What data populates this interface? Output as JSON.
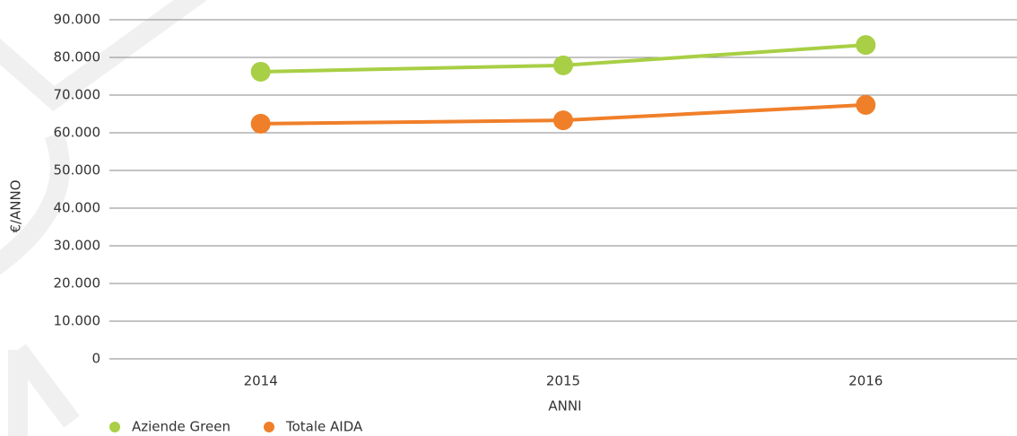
{
  "chart_data": {
    "type": "line",
    "categories": [
      "2014",
      "2015",
      "2016"
    ],
    "series": [
      {
        "name": "Aziende Green",
        "color": "#a8cf45",
        "values": [
          76200,
          77900,
          83300
        ]
      },
      {
        "name": "Totale AIDA",
        "color": "#f07f2a",
        "values": [
          62400,
          63300,
          67400
        ]
      }
    ],
    "ylim": [
      0,
      90000
    ],
    "yticks": [
      0,
      {
        "value": 10000,
        "label": "10.000"
      },
      {
        "value": 20000,
        "label": "20.000"
      },
      {
        "value": 30000,
        "label": "30.000"
      },
      {
        "value": 40000,
        "label": "40.000"
      },
      {
        "value": 50000,
        "label": "50.000"
      },
      {
        "value": 60000,
        "label": "60.000"
      },
      {
        "value": 70000,
        "label": "70.000"
      },
      {
        "value": 80000,
        "label": "80.000"
      },
      {
        "value": 90000,
        "label": "90.000"
      }
    ],
    "y_label": "€/ANNO",
    "x_label": "ANNI",
    "grid": true,
    "legend": "bottom-left"
  }
}
